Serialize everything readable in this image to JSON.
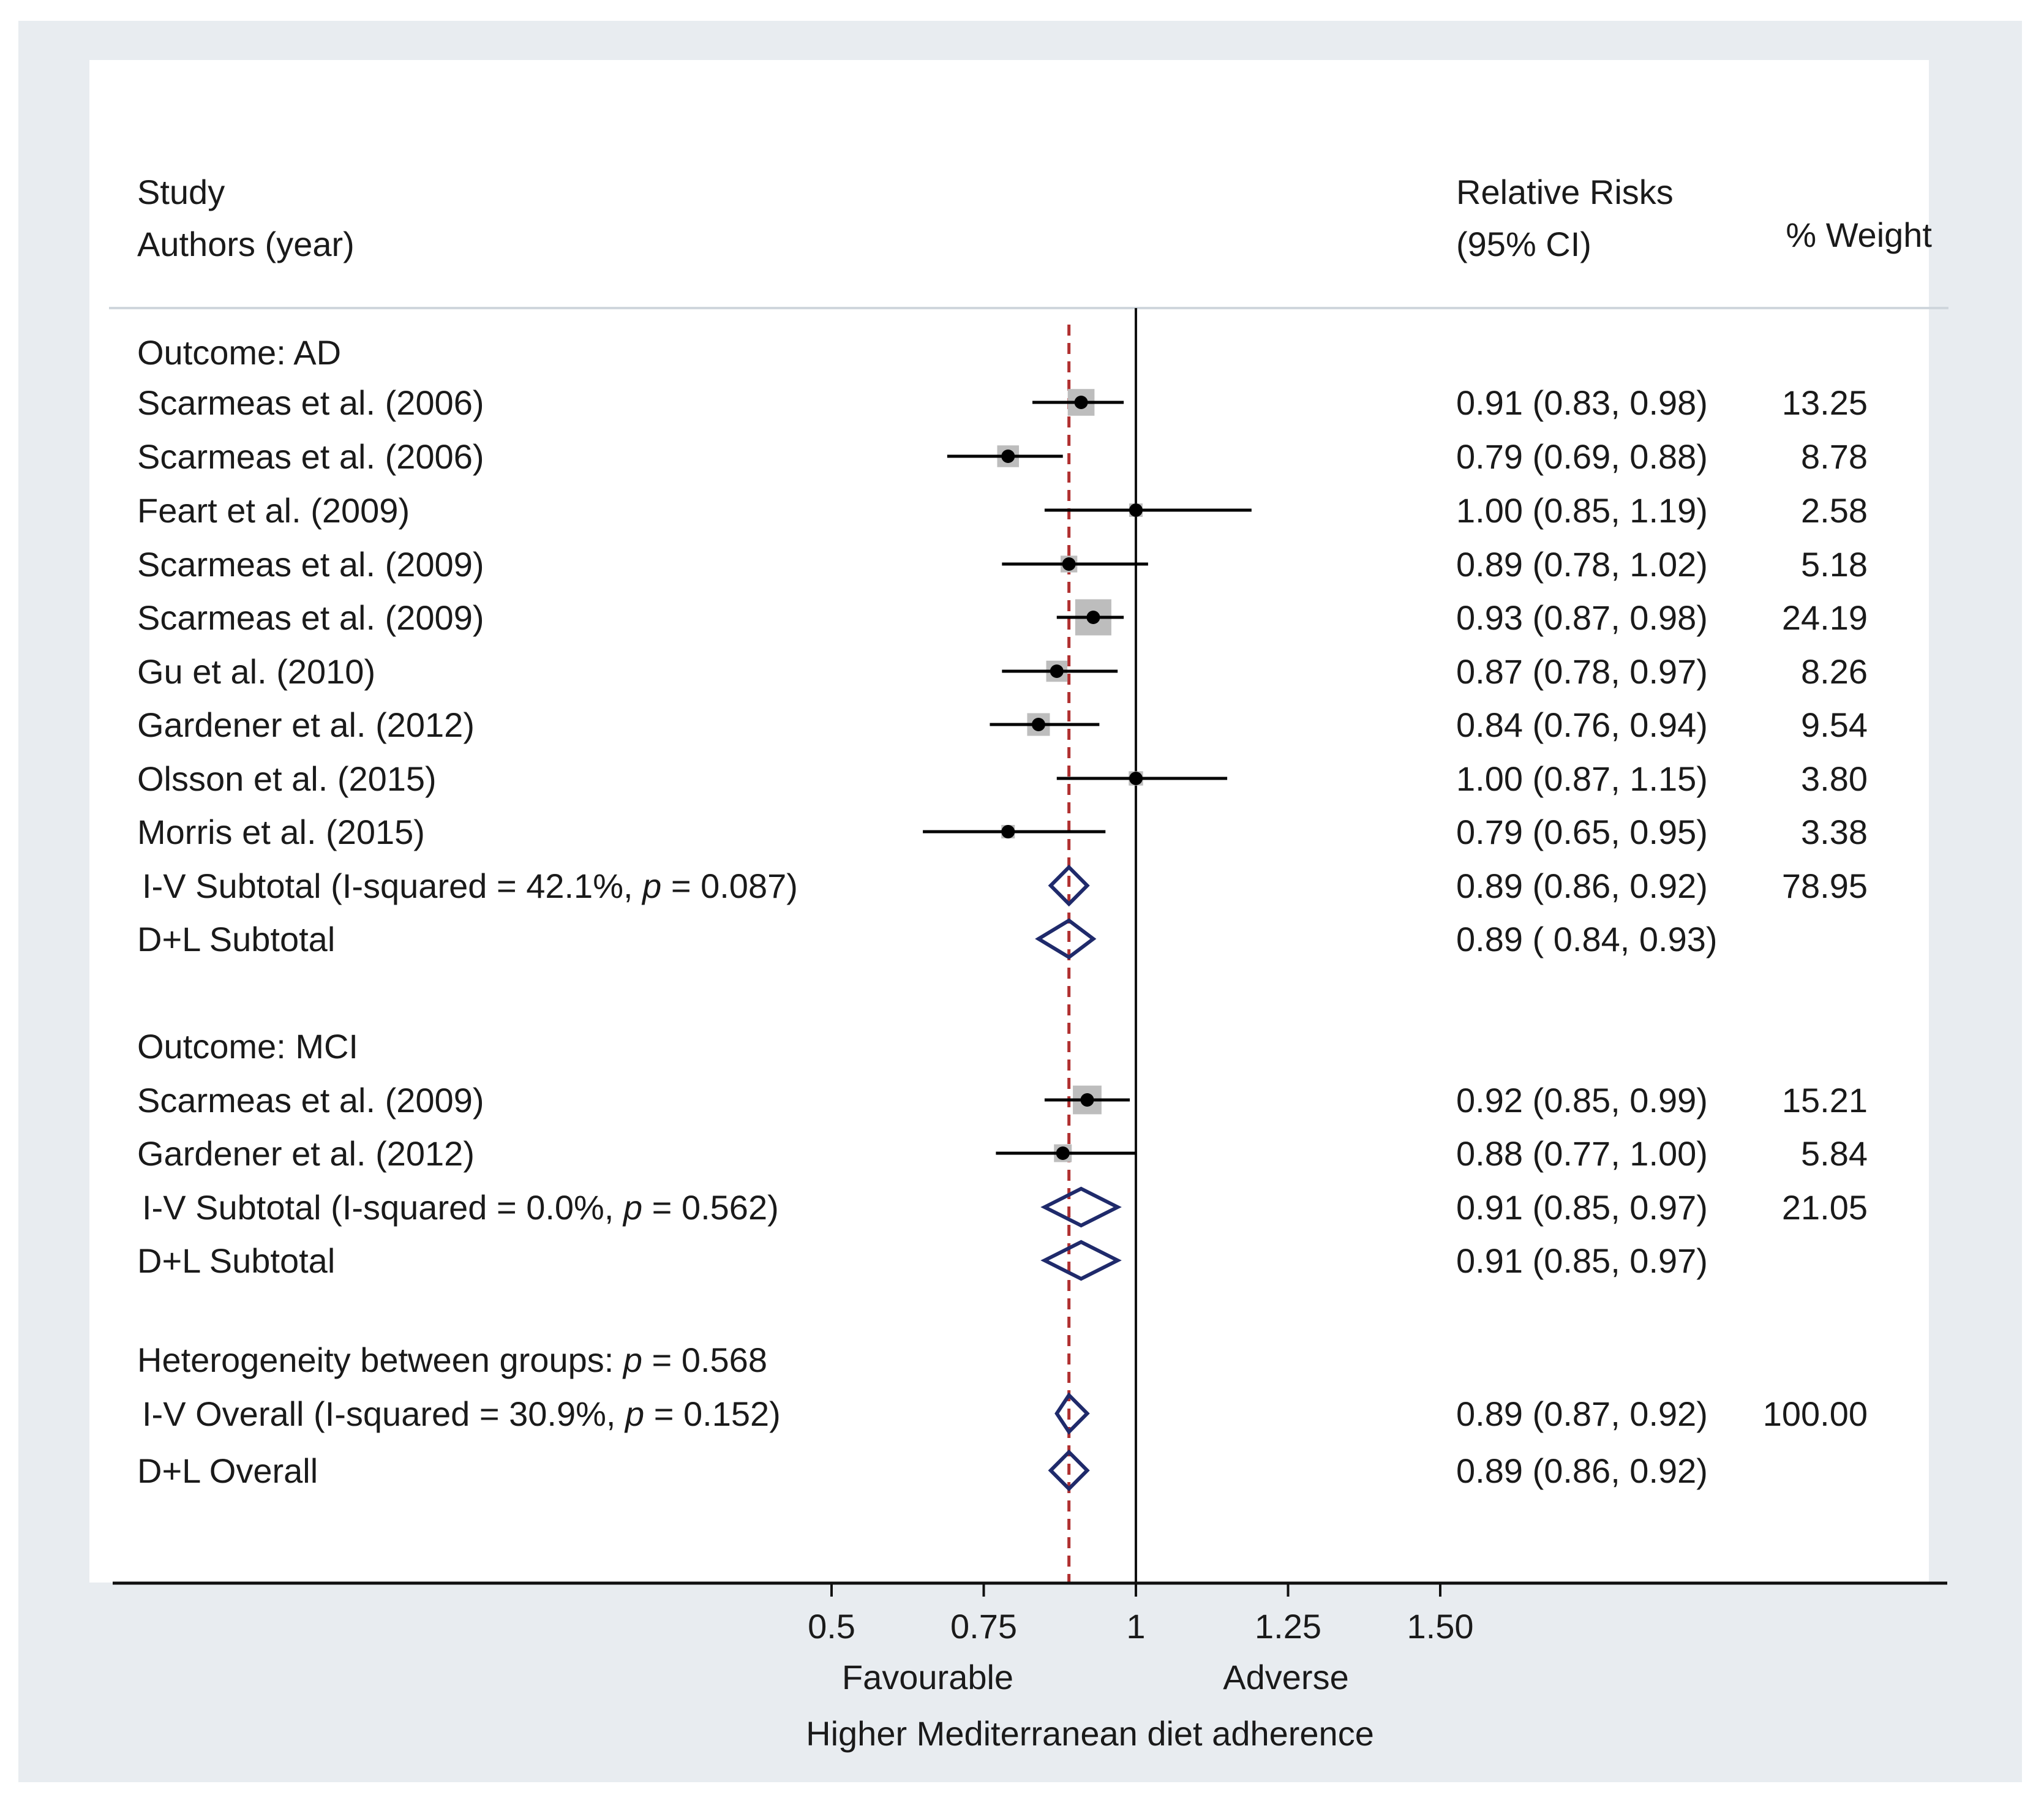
{
  "chart_data": {
    "type": "forest",
    "headers": {
      "study_line1": "Study",
      "study_line2": "Authors (year)",
      "rr_line1": "Relative Risks",
      "rr_line2": "(95%  CI)",
      "weight": "% Weight"
    },
    "rows": [
      {
        "kind": "group",
        "label": "Outcome: AD"
      },
      {
        "kind": "study",
        "label": "Scarmeas et al. (2006)",
        "est": 0.91,
        "lo": 0.83,
        "hi": 0.98,
        "ci_text": "0.91   (0.83,  0.98)",
        "weight": "13.25",
        "wnum": 13.25
      },
      {
        "kind": "study",
        "label": "Scarmeas et al. (2006)",
        "est": 0.79,
        "lo": 0.69,
        "hi": 0.88,
        "ci_text": "0.79   (0.69,  0.88)",
        "weight": "8.78",
        "wnum": 8.78
      },
      {
        "kind": "study",
        "label": "Feart et al. (2009)",
        "est": 1.0,
        "lo": 0.85,
        "hi": 1.19,
        "ci_text": "1.00   (0.85,  1.19)",
        "weight": "2.58",
        "wnum": 2.58
      },
      {
        "kind": "study",
        "label": "Scarmeas et al. (2009)",
        "est": 0.89,
        "lo": 0.78,
        "hi": 1.02,
        "ci_text": "0.89   (0.78,  1.02)",
        "weight": "5.18",
        "wnum": 5.18
      },
      {
        "kind": "study",
        "label": "Scarmeas et al. (2009)",
        "est": 0.93,
        "lo": 0.87,
        "hi": 0.98,
        "ci_text": "0.93   (0.87,  0.98)",
        "weight": "24.19",
        "wnum": 24.19
      },
      {
        "kind": "study",
        "label": "Gu et al. (2010)",
        "est": 0.87,
        "lo": 0.78,
        "hi": 0.97,
        "ci_text": "0.87   (0.78,  0.97)",
        "weight": "8.26",
        "wnum": 8.26
      },
      {
        "kind": "study",
        "label": "Gardener et al. (2012)",
        "est": 0.84,
        "lo": 0.76,
        "hi": 0.94,
        "ci_text": "0.84   (0.76,  0.94)",
        "weight": "9.54",
        "wnum": 9.54
      },
      {
        "kind": "study",
        "label": "Olsson et al. (2015)",
        "est": 1.0,
        "lo": 0.87,
        "hi": 1.15,
        "ci_text": "1.00   (0.87,  1.15)",
        "weight": "3.80",
        "wnum": 3.8
      },
      {
        "kind": "study",
        "label": "Morris et al. (2015)",
        "est": 0.79,
        "lo": 0.65,
        "hi": 0.95,
        "ci_text": "0.79   (0.65,  0.95)",
        "weight": "3.38",
        "wnum": 3.38
      },
      {
        "kind": "pooled",
        "label": "I-V Subtotal  (I-squared = 42.1%, ",
        "p_text": "p",
        "label_tail": " = 0.087)",
        "est": 0.89,
        "lo": 0.86,
        "hi": 0.92,
        "ci_text": "0.89   (0.86,  0.92)",
        "weight": "78.95"
      },
      {
        "kind": "pooled",
        "label": "D+L Subtotal",
        "est": 0.89,
        "lo": 0.84,
        "hi": 0.93,
        "ci_text": "0.89   ( 0.84, 0.93)",
        "weight": ""
      },
      {
        "kind": "spacer"
      },
      {
        "kind": "group",
        "label": "Outcome: MCI"
      },
      {
        "kind": "study",
        "label": "Scarmeas et al. (2009)",
        "est": 0.92,
        "lo": 0.85,
        "hi": 0.99,
        "ci_text": "0.92  (0.85,  0.99)",
        "weight": "15.21",
        "wnum": 15.21
      },
      {
        "kind": "study",
        "label": "Gardener et al. (2012)",
        "est": 0.88,
        "lo": 0.77,
        "hi": 1.0,
        "ci_text": "0.88  (0.77,  1.00)",
        "weight": "5.84",
        "wnum": 5.84
      },
      {
        "kind": "pooled",
        "label": "I-V Subtotal  (I-squared = 0.0%, ",
        "p_text": "p",
        "label_tail": " = 0.562)",
        "est": 0.91,
        "lo": 0.85,
        "hi": 0.97,
        "ci_text": "0.91   (0.85,  0.97)",
        "weight": "21.05"
      },
      {
        "kind": "pooled",
        "label": "D+L Subtotal",
        "est": 0.91,
        "lo": 0.85,
        "hi": 0.97,
        "ci_text": "0.91  (0.85,  0.97)",
        "weight": ""
      },
      {
        "kind": "spacer"
      },
      {
        "kind": "group",
        "label": "Heterogeneity between groups: ",
        "p_text": "p",
        "label_tail": " = 0.568"
      },
      {
        "kind": "pooled",
        "label": "I-V Overall  (I-squared = 30.9%, ",
        "p_text": "p",
        "label_tail": " = 0.152)",
        "est": 0.89,
        "lo": 0.87,
        "hi": 0.92,
        "ci_text": "0.89   (0.87,   0.92)",
        "weight": "100.00"
      },
      {
        "kind": "pooled",
        "label": "D+L Overall",
        "est": 0.89,
        "lo": 0.86,
        "hi": 0.92,
        "ci_text": "0.89  (0.86,  0.92)",
        "weight": ""
      }
    ],
    "null_line": 1.0,
    "overall_estimate_line": 0.89,
    "x_axis": {
      "ticks": [
        0.5,
        0.75,
        1,
        1.25,
        1.5
      ],
      "tick_labels": [
        "0.5",
        "0.75",
        "1",
        "1.25",
        "1.50"
      ],
      "label_left": "Favourable",
      "label_right": "Adverse",
      "title": "Higher Mediterranean diet adherence"
    },
    "colors": {
      "diamond": "#1f2a6b",
      "estimate_line": "#b03030",
      "weight_box": "#bdbdbd",
      "background": "#e8ecf0"
    }
  }
}
